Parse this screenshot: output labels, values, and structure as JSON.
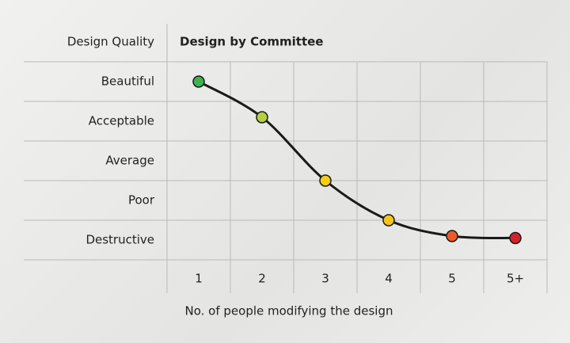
{
  "chart_data": {
    "type": "line",
    "title": "Design by Committee",
    "y_label": "Design Quality",
    "x_label": "No. of people modifying the design",
    "categories": [
      "1",
      "2",
      "3",
      "4",
      "5",
      "5+"
    ],
    "values": [
      5,
      4.1,
      2.5,
      1.5,
      1.1,
      1.05
    ],
    "colors": [
      "#3fb44c",
      "#b6d03d",
      "#f6cc14",
      "#f5c51e",
      "#ec5b2b",
      "#d6212b"
    ],
    "line_color": "#1a1a1a",
    "ylim": [
      0.5,
      5.5
    ],
    "yticks": [
      {
        "value": 5,
        "label": "Beautiful"
      },
      {
        "value": 4,
        "label": "Acceptable"
      },
      {
        "value": 3,
        "label": "Average"
      },
      {
        "value": 2,
        "label": "Poor"
      },
      {
        "value": 1,
        "label": "Destructive"
      }
    ],
    "grid": true
  }
}
